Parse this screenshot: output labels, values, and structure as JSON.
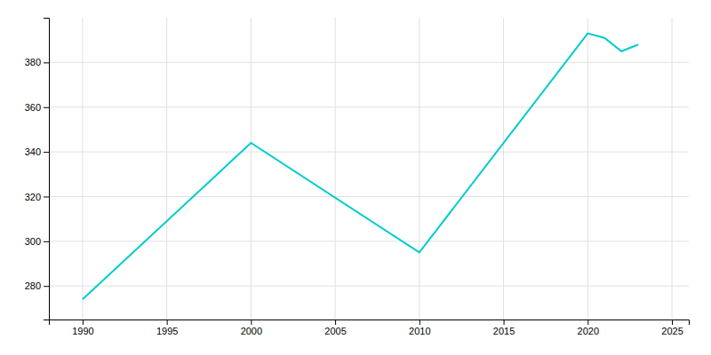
{
  "chart_data": {
    "type": "line",
    "x": [
      1990,
      2000,
      2010,
      2020,
      2021,
      2022,
      2023
    ],
    "values": [
      274,
      344,
      295,
      393,
      391,
      385,
      388
    ],
    "color": "#00CCCC",
    "xlim": [
      1988,
      2026
    ],
    "ylim": [
      265,
      400
    ],
    "xticks": [
      1990,
      1995,
      2000,
      2005,
      2010,
      2015,
      2020,
      2025
    ],
    "yticks": [
      280,
      300,
      320,
      340,
      360,
      380
    ],
    "grid": true
  }
}
